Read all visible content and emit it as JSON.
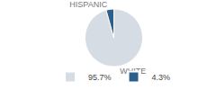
{
  "chart_data": {
    "type": "pie",
    "categories": [
      "WHITE",
      "HISPANIC"
    ],
    "values": [
      95.7,
      4.3
    ],
    "value_labels": [
      "95.7%",
      "4.3%"
    ],
    "colors": [
      "#d6dce4",
      "#2e5f8a"
    ],
    "legend": "bottom"
  }
}
